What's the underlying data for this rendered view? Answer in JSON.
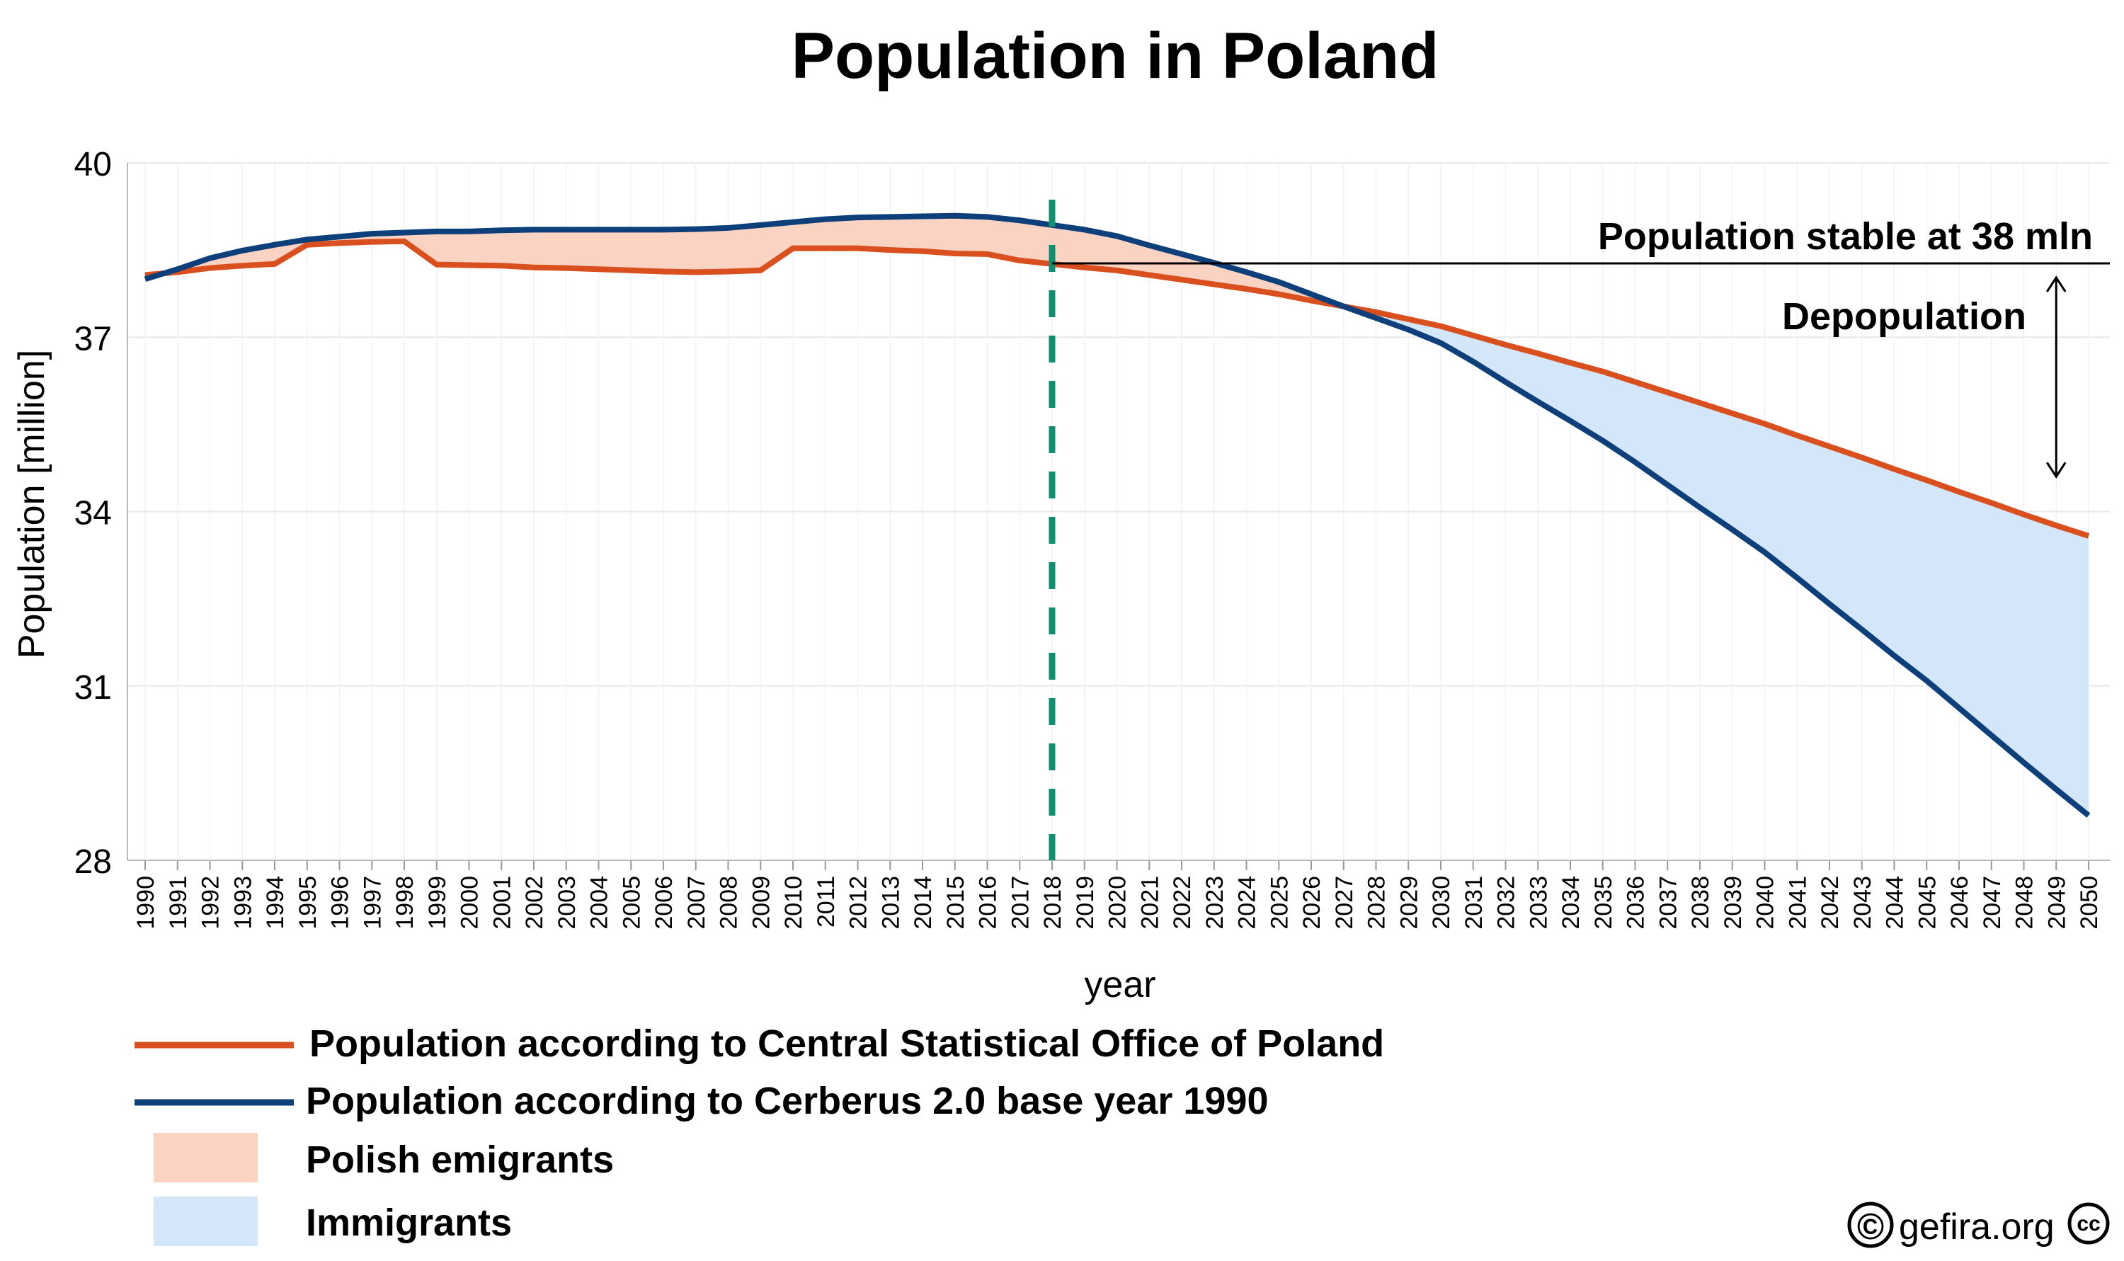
{
  "chart_data": {
    "type": "line",
    "title": "Population in Poland",
    "xlabel": "year",
    "ylabel": "Population [million]",
    "ylim": [
      28,
      40
    ],
    "yticks": [
      28,
      31,
      34,
      37,
      40
    ],
    "x": [
      1990,
      1991,
      1992,
      1993,
      1994,
      1995,
      1996,
      1997,
      1998,
      1999,
      2000,
      2001,
      2002,
      2003,
      2004,
      2005,
      2006,
      2007,
      2008,
      2009,
      2010,
      2011,
      2012,
      2013,
      2014,
      2015,
      2016,
      2017,
      2018,
      2019,
      2020,
      2021,
      2022,
      2023,
      2024,
      2025,
      2026,
      2027,
      2028,
      2029,
      2030,
      2031,
      2032,
      2033,
      2034,
      2035,
      2036,
      2037,
      2038,
      2039,
      2040,
      2041,
      2042,
      2043,
      2044,
      2045,
      2046,
      2047,
      2048,
      2049,
      2050
    ],
    "series": [
      {
        "name": "Population according to Central Statistical Office of Poland",
        "color": "#d94f1e",
        "values": [
          38.07,
          38.12,
          38.19,
          38.23,
          38.26,
          38.59,
          38.62,
          38.64,
          38.65,
          38.25,
          38.24,
          38.23,
          38.2,
          38.19,
          38.17,
          38.15,
          38.13,
          38.12,
          38.13,
          38.15,
          38.53,
          38.53,
          38.53,
          38.5,
          38.48,
          38.44,
          38.43,
          38.32,
          38.26,
          38.2,
          38.15,
          38.07,
          37.99,
          37.91,
          37.83,
          37.74,
          37.63,
          37.53,
          37.43,
          37.31,
          37.19,
          37.03,
          36.87,
          36.72,
          36.56,
          36.41,
          36.23,
          36.05,
          35.87,
          35.69,
          35.51,
          35.31,
          35.12,
          34.93,
          34.73,
          34.54,
          34.34,
          34.15,
          33.95,
          33.76,
          33.58
        ]
      },
      {
        "name": "Population according to Cerberus 2.0 base year 1990",
        "color": "#0d3f7a",
        "values": [
          38.0,
          38.17,
          38.36,
          38.49,
          38.59,
          38.68,
          38.73,
          38.78,
          38.8,
          38.82,
          38.82,
          38.84,
          38.85,
          38.85,
          38.85,
          38.85,
          38.85,
          38.86,
          38.88,
          38.93,
          38.98,
          39.03,
          39.06,
          39.07,
          39.08,
          39.09,
          39.07,
          39.01,
          38.93,
          38.85,
          38.74,
          38.58,
          38.43,
          38.28,
          38.12,
          37.95,
          37.74,
          37.53,
          37.33,
          37.13,
          36.9,
          36.58,
          36.23,
          35.89,
          35.56,
          35.22,
          34.85,
          34.46,
          34.07,
          33.69,
          33.3,
          32.86,
          32.41,
          31.97,
          31.52,
          31.09,
          30.62,
          30.15,
          29.68,
          29.22,
          28.77
        ]
      }
    ],
    "shaded_areas": [
      {
        "name": "Polish emigrants",
        "color": "#fbd3c3"
      },
      {
        "name": "Immigrants",
        "color": "#d3e6fa"
      }
    ],
    "annotations": {
      "reference_year": 2018,
      "reference_line_color": "#0f8f70",
      "stable_level": 38.27,
      "stable_label": "Population stable at 38 mln",
      "depopulation_label": "Depopulation",
      "arrow_from": 38.27,
      "arrow_to": 34.6,
      "arrow_year": 2049
    },
    "grid": true,
    "legend_placement": "bottom"
  },
  "credit": {
    "copyright_symbol": "©",
    "site": "gefira.org",
    "cc_symbol": "cc"
  }
}
